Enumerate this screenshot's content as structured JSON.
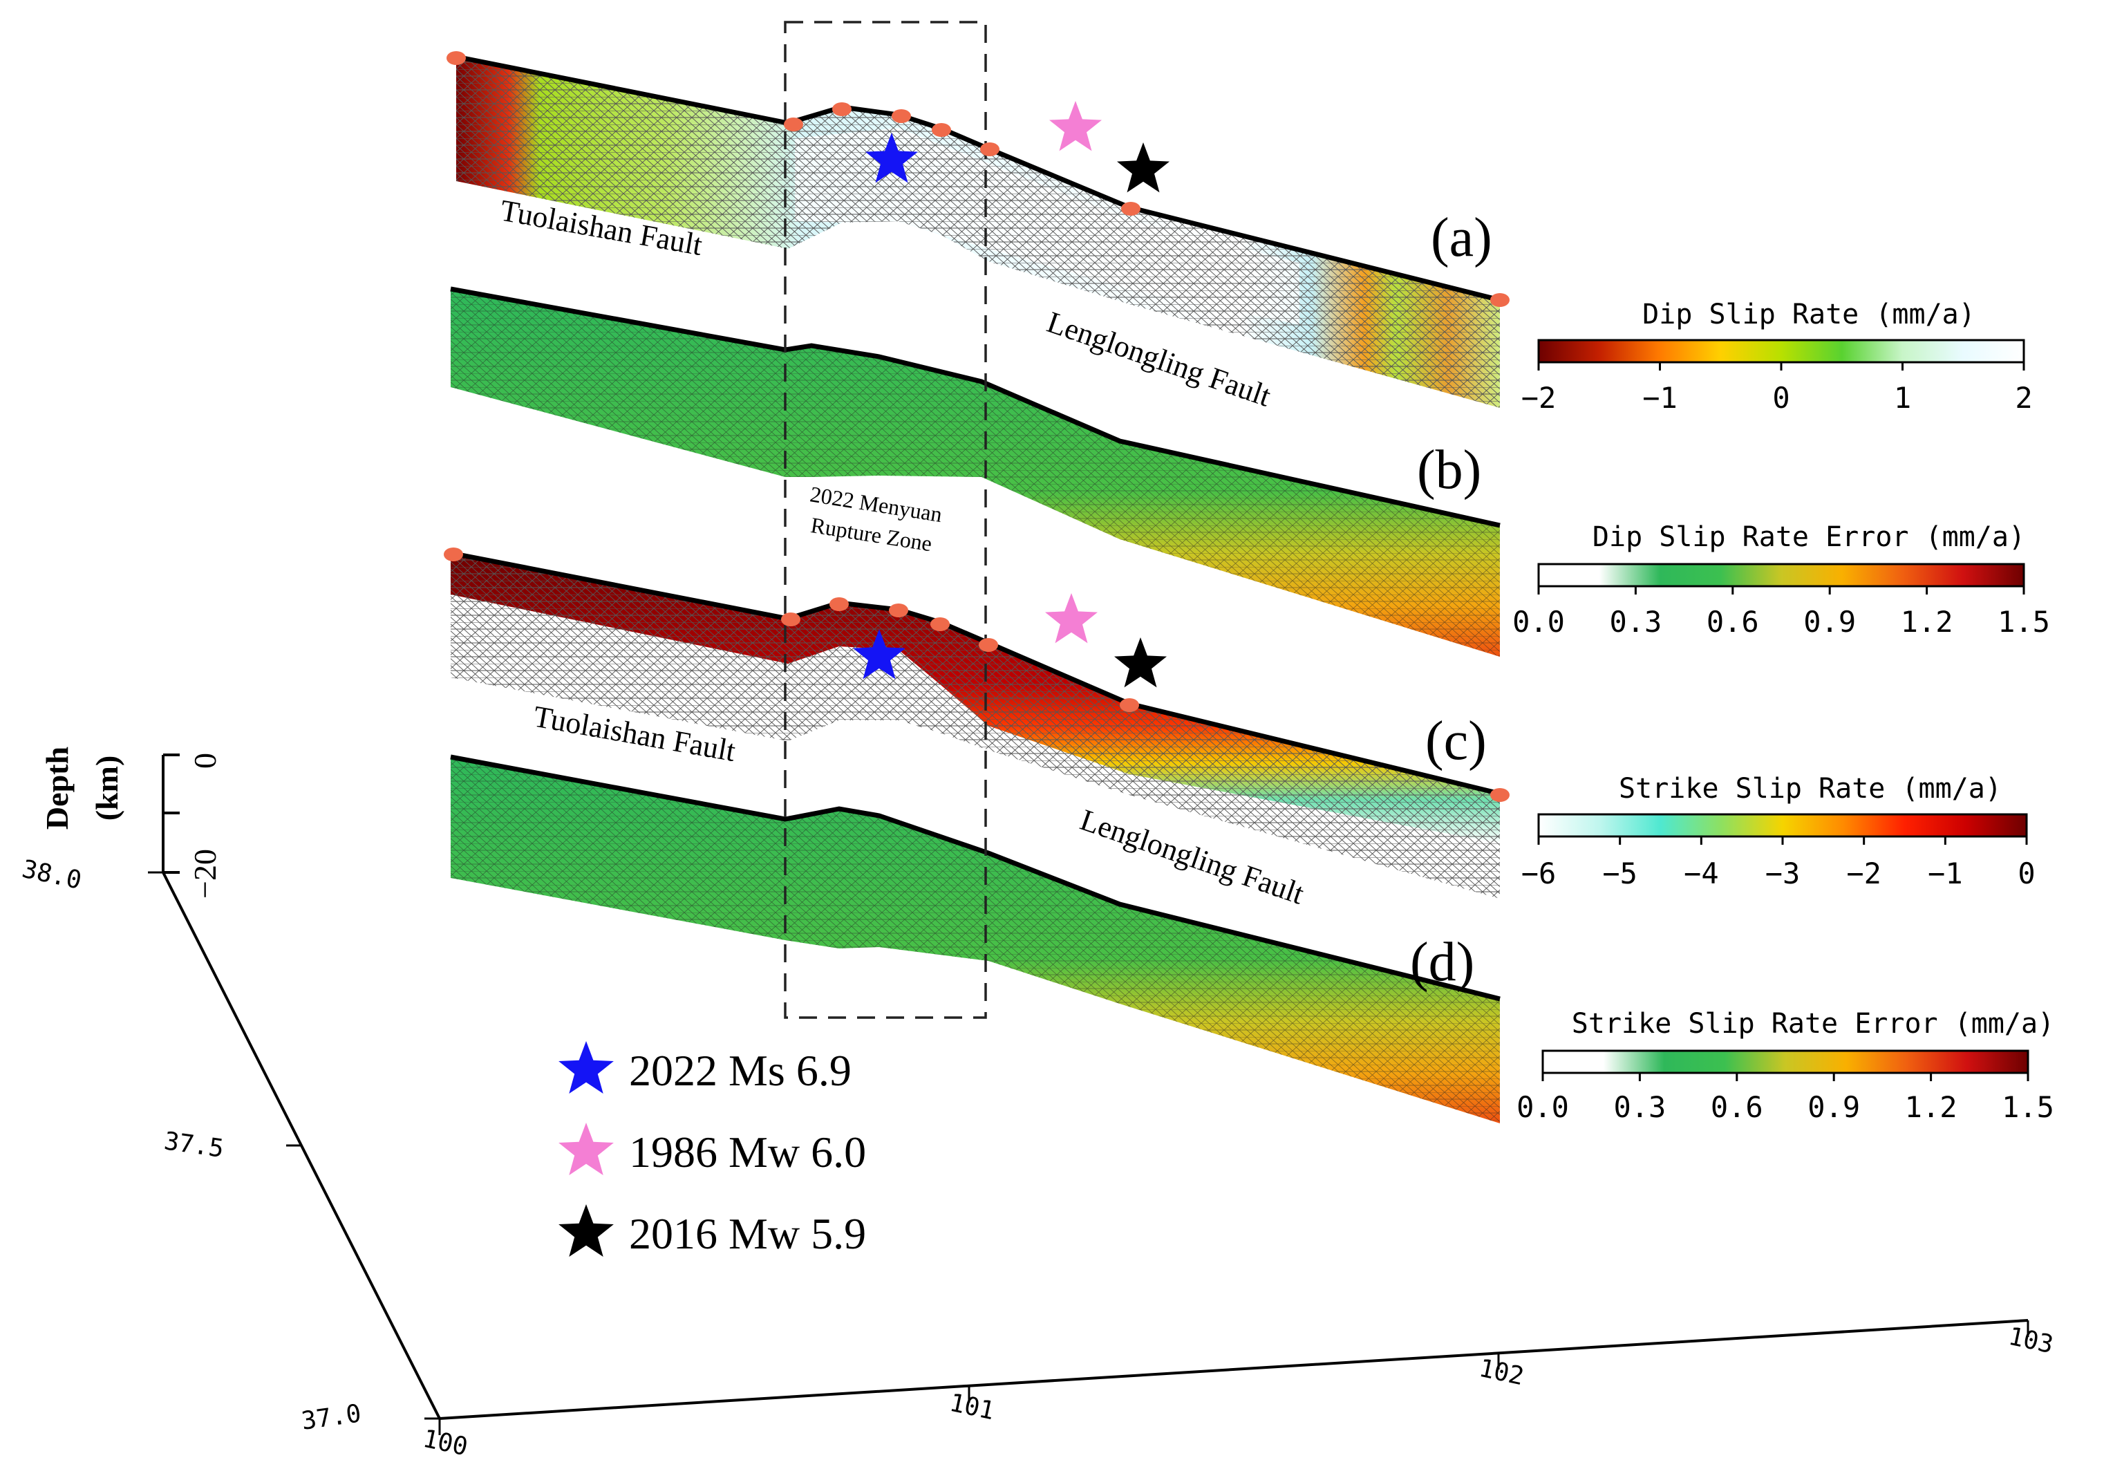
{
  "panels": [
    {
      "label": "(a)",
      "fault_west": "Tuolaishan Fault",
      "fault_east": "Lenglongling Fault"
    },
    {
      "label": "(b)"
    },
    {
      "label": "(c)",
      "fault_west": "Tuolaishan Fault",
      "fault_east": "Lenglongling Fault"
    },
    {
      "label": "(d)"
    }
  ],
  "rupture_zone_label": [
    "2022 Menyuan",
    "Rupture Zone"
  ],
  "legend": [
    {
      "label": "2022 Ms 6.9",
      "color": "#1414f5",
      "icon": "blue-star-icon"
    },
    {
      "label": "1986 Mw 6.0",
      "color": "#f47fd4",
      "icon": "pink-star-icon"
    },
    {
      "label": "2016 Mw 5.9",
      "color": "#000000",
      "icon": "black-star-icon"
    }
  ],
  "colorbars": [
    {
      "title": "Dip Slip Rate (mm/a)",
      "ticks": [
        "−2",
        "−1",
        "0",
        "1",
        "2"
      ],
      "colors": [
        "#6e0000",
        "#c42000",
        "#ff7b00",
        "#ffd000",
        "#b8e000",
        "#59d230",
        "#c8f5c8",
        "#e9fbff",
        "#ffffff"
      ]
    },
    {
      "title": "Dip Slip Rate Error (mm/a)",
      "ticks": [
        "0.0",
        "0.3",
        "0.6",
        "0.9",
        "1.2",
        "1.5"
      ],
      "colors": [
        "#ffffff",
        "#ffffff",
        "#2fb85a",
        "#3cc050",
        "#c9c624",
        "#f9b000",
        "#f06010",
        "#d01010",
        "#6e0000"
      ]
    },
    {
      "title": "Strike Slip Rate (mm/a)",
      "ticks": [
        "−6",
        "−5",
        "−4",
        "−3",
        "−2",
        "−1",
        "0"
      ],
      "colors": [
        "#ffffff",
        "#bff6ee",
        "#4fe8d0",
        "#8ee060",
        "#f5d400",
        "#ff8a00",
        "#ff2000",
        "#cc0000",
        "#6e0000"
      ]
    },
    {
      "title": "Strike Slip Rate Error (mm/a)",
      "ticks": [
        "0.0",
        "0.3",
        "0.6",
        "0.9",
        "1.2",
        "1.5"
      ],
      "colors": [
        "#ffffff",
        "#ffffff",
        "#2fb85a",
        "#3cc050",
        "#c9c624",
        "#f9b000",
        "#f06010",
        "#d01010",
        "#6e0000"
      ]
    }
  ],
  "axes": {
    "depth_label": [
      "Depth",
      "(km)"
    ],
    "depth_ticks": [
      "0",
      "−20"
    ],
    "lat_ticks": [
      "38.0",
      "37.5",
      "37.0"
    ],
    "lon_ticks": [
      "100",
      "101",
      "102",
      "103"
    ]
  }
}
